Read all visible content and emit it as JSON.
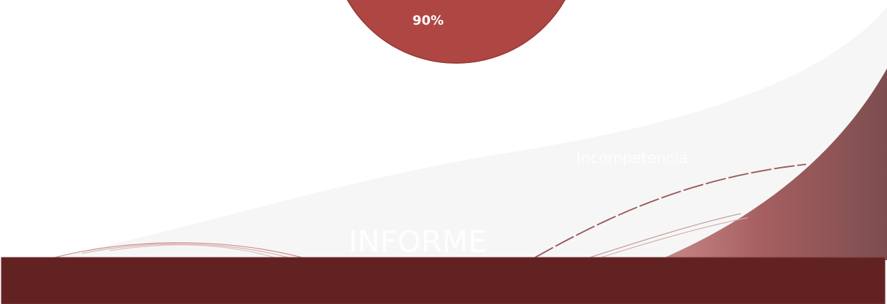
{
  "slide": {
    "circle_label": "90%",
    "subtitle": "Incompetencia",
    "title": "INFORME"
  }
}
